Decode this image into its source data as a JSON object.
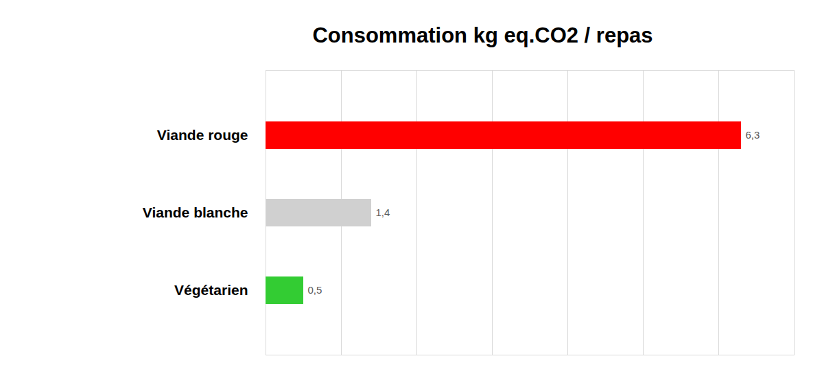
{
  "chart_data": {
    "type": "bar",
    "title": "Consommation kg eq.CO2 / repas",
    "orientation": "horizontal",
    "categories": [
      "Viande rouge",
      "Viande blanche",
      "Végétarien"
    ],
    "values": [
      6.3,
      1.4,
      0.5
    ],
    "value_labels": [
      "6,3",
      "1,4",
      "0,5"
    ],
    "colors": [
      "#ff0000",
      "#d0d0d0",
      "#33cc33"
    ],
    "xlim": [
      0,
      7
    ],
    "xticks": [
      0,
      1,
      2,
      3,
      4,
      5,
      6
    ],
    "grid": true,
    "data_labels": true,
    "tick_labels": "y"
  }
}
